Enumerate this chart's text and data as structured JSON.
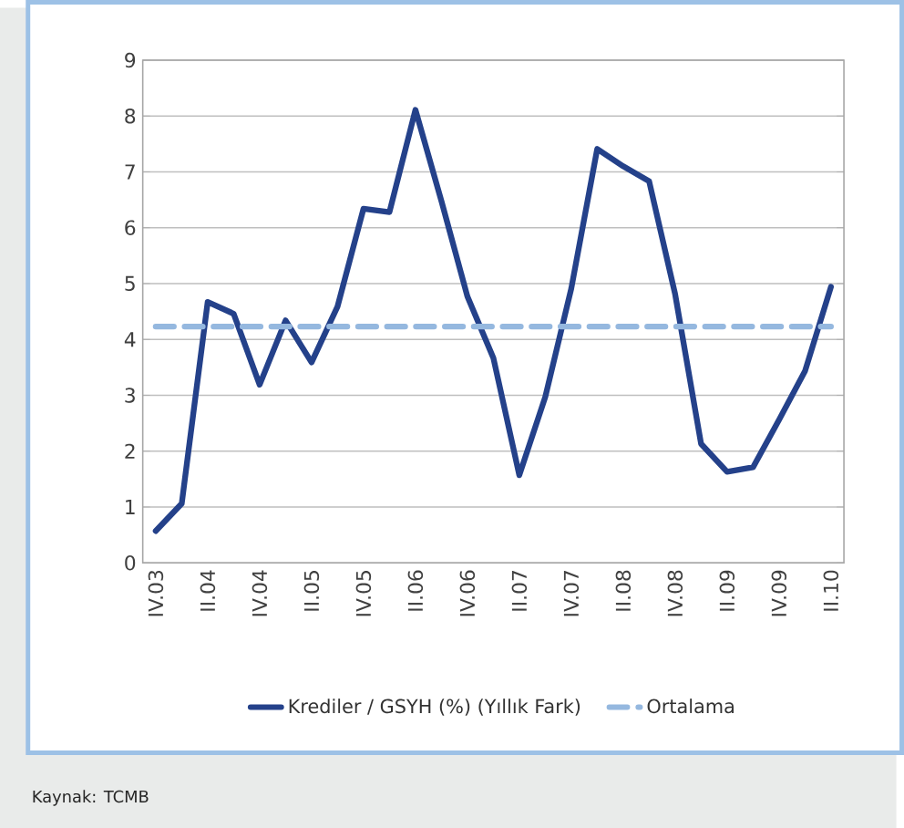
{
  "chart_data": {
    "type": "line",
    "categories": [
      "IV.03",
      null,
      "II.04",
      null,
      "IV.04",
      null,
      "II.05",
      null,
      "IV.05",
      null,
      "II.06",
      null,
      "IV.06",
      null,
      "II.07",
      null,
      "IV.07",
      null,
      "II.08",
      null,
      "IV.08",
      null,
      "II.09",
      null,
      "IV.09",
      null,
      "II.10"
    ],
    "series": [
      {
        "name": "Krediler / GSYH (%) (Yıllık Fark)",
        "color": "#24418a",
        "line_style": "solid",
        "values": [
          0.57,
          1.06,
          4.67,
          4.46,
          3.19,
          4.34,
          3.59,
          4.59,
          6.34,
          6.28,
          8.11,
          6.48,
          4.77,
          3.67,
          1.57,
          2.97,
          4.91,
          7.41,
          7.1,
          6.83,
          4.81,
          2.13,
          1.63,
          1.71,
          2.56,
          3.43,
          4.94
        ]
      },
      {
        "name": "Ortalama",
        "color": "#95b8df",
        "line_style": "dashed",
        "values": [
          4.23,
          4.23,
          4.23,
          4.23,
          4.23,
          4.23,
          4.23,
          4.23,
          4.23,
          4.23,
          4.23,
          4.23,
          4.23,
          4.23,
          4.23,
          4.23,
          4.23,
          4.23,
          4.23,
          4.23,
          4.23,
          4.23,
          4.23,
          4.23,
          4.23,
          4.23,
          4.23
        ]
      }
    ],
    "ylim": [
      0,
      9
    ],
    "yticks": [
      0,
      1,
      2,
      3,
      4,
      5,
      6,
      7,
      8,
      9
    ],
    "grid": "y",
    "legend": "bottom",
    "marker": "none",
    "annotations": [
      "Kaynak: TCMB"
    ]
  }
}
